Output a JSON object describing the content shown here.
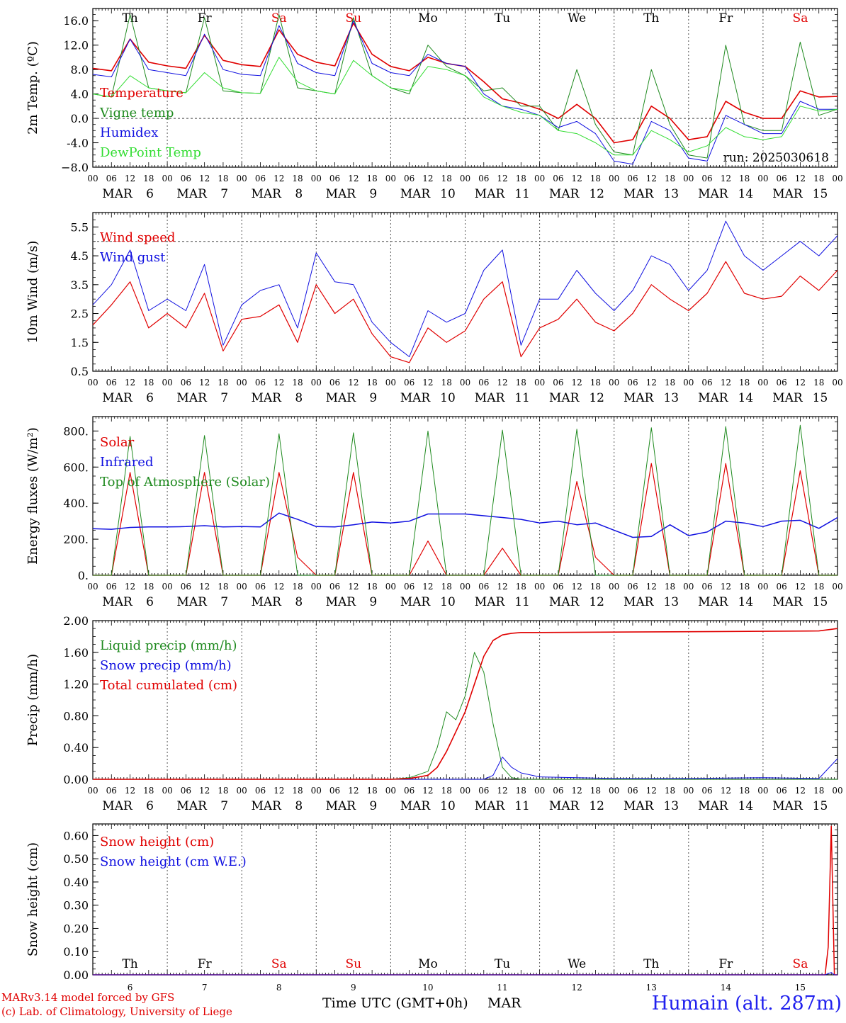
{
  "colors": {
    "red": "#e00000",
    "dark_green": "#1f8a1f",
    "blue": "#1010e0",
    "light_green": "#33dd33",
    "axis": "#000000",
    "weekend": "#e00000",
    "station": "#2020ee"
  },
  "x_axis": {
    "hour_ticks": [
      "00",
      "06",
      "12",
      "18"
    ],
    "end_tick": "00",
    "month": "MAR",
    "dates": [
      "6",
      "7",
      "8",
      "9",
      "10",
      "11",
      "12",
      "13",
      "14",
      "15"
    ],
    "weekdays": [
      {
        "label": "Th",
        "weekend": false
      },
      {
        "label": "Fr",
        "weekend": false
      },
      {
        "label": "Sa",
        "weekend": true
      },
      {
        "label": "Su",
        "weekend": true
      },
      {
        "label": "Mo",
        "weekend": false
      },
      {
        "label": "Tu",
        "weekend": false
      },
      {
        "label": "We",
        "weekend": false
      },
      {
        "label": "Th",
        "weekend": false
      },
      {
        "label": "Fr",
        "weekend": false
      },
      {
        "label": "Sa",
        "weekend": true
      }
    ]
  },
  "footer": {
    "model": "MARv3.14 model forced by GFS",
    "copyright": "(c) Lab. of Climatology, University of Liege",
    "time_label": "Time UTC (GMT+0h)",
    "month": "MAR",
    "station": "Humain (alt. 287m)"
  },
  "chart_data": [
    {
      "type": "line",
      "ylabel": "2m Temp. (ºC)",
      "ylim": [
        -8,
        18
      ],
      "yticks": [
        {
          "v": 16,
          "label": "16.0"
        },
        {
          "v": 12,
          "label": "12.0"
        },
        {
          "v": 8,
          "label": "8.0"
        },
        {
          "v": 4,
          "label": "4.0"
        },
        {
          "v": 0,
          "label": "0.0"
        },
        {
          "v": -4,
          "label": "-4.0"
        },
        {
          "v": -8,
          "label": "−8.0"
        }
      ],
      "ref_line": 0,
      "show_weekdays": true,
      "run_label": "run: 2025030618",
      "x": [
        0,
        6,
        12,
        18,
        24,
        30,
        36,
        42,
        48,
        54,
        60,
        66,
        72,
        78,
        84,
        90,
        96,
        102,
        108,
        114,
        120,
        126,
        132,
        138,
        144,
        150,
        156,
        162,
        168,
        174,
        180,
        186,
        192,
        198,
        204,
        210,
        216,
        222,
        228,
        234,
        240
      ],
      "series": [
        {
          "name": "Temperature",
          "color_key": "red",
          "width": 1.6,
          "values": [
            8.2,
            7.8,
            13.0,
            9.2,
            8.6,
            8.2,
            13.6,
            9.5,
            8.8,
            8.5,
            14.5,
            10.5,
            9.2,
            8.6,
            15.6,
            10.5,
            8.5,
            7.8,
            10.0,
            9.0,
            8.5,
            6.0,
            3.2,
            2.5,
            1.5,
            0.0,
            2.3,
            0.0,
            -4.0,
            -3.5,
            2.0,
            0.0,
            -3.5,
            -3.0,
            2.8,
            1.0,
            0.0,
            0.0,
            4.5,
            3.5,
            3.6
          ]
        },
        {
          "name": "Vigne temp",
          "color_key": "dark_green",
          "width": 1.0,
          "values": [
            4.0,
            3.5,
            17.0,
            5.0,
            4.5,
            4.2,
            16.5,
            4.5,
            4.2,
            4.1,
            17.0,
            5.0,
            4.5,
            4.0,
            16.5,
            7.0,
            5.0,
            4.0,
            12.0,
            8.5,
            7.0,
            4.5,
            5.0,
            2.0,
            2.0,
            -2.0,
            8.0,
            -1.0,
            -5.5,
            -6.0,
            8.0,
            -1.0,
            -6.0,
            -6.5,
            12.0,
            -1.0,
            -2.0,
            -2.0,
            12.5,
            0.5,
            1.5
          ]
        },
        {
          "name": "Humidex",
          "color_key": "blue",
          "width": 1.0,
          "values": [
            7.2,
            6.8,
            13.0,
            8.0,
            7.5,
            7.0,
            13.8,
            8.0,
            7.2,
            7.0,
            15.2,
            9.0,
            7.5,
            7.0,
            16.0,
            9.0,
            7.5,
            7.0,
            10.5,
            9.0,
            8.5,
            4.0,
            2.0,
            1.5,
            0.5,
            -1.5,
            -0.5,
            -2.5,
            -7.0,
            -7.5,
            -0.5,
            -2.0,
            -6.5,
            -7.0,
            0.5,
            -1.0,
            -2.5,
            -2.5,
            2.8,
            1.5,
            1.5
          ]
        },
        {
          "name": "DewPoint Temp",
          "color_key": "light_green",
          "width": 1.0,
          "values": [
            4.0,
            3.5,
            7.0,
            5.0,
            4.5,
            4.2,
            7.5,
            5.0,
            4.2,
            4.1,
            10.0,
            6.0,
            4.5,
            4.0,
            9.5,
            7.0,
            5.0,
            4.5,
            8.5,
            8.0,
            7.0,
            3.5,
            2.0,
            1.0,
            0.5,
            -2.0,
            -2.5,
            -4.0,
            -6.0,
            -6.0,
            -2.0,
            -3.5,
            -5.5,
            -4.5,
            -1.5,
            -3.0,
            -3.5,
            -3.0,
            2.0,
            1.2,
            1.5
          ]
        }
      ]
    },
    {
      "type": "line",
      "ylabel": "10m Wind (m/s)",
      "ylim": [
        0.5,
        6.0
      ],
      "yticks": [
        {
          "v": 5.5,
          "label": "5.5"
        },
        {
          "v": 4.5,
          "label": "4.5"
        },
        {
          "v": 3.5,
          "label": "3.5"
        },
        {
          "v": 2.5,
          "label": "2.5"
        },
        {
          "v": 1.5,
          "label": "1.5"
        },
        {
          "v": 0.5,
          "label": "0.5"
        }
      ],
      "ref_line": 5.0,
      "show_weekdays": false,
      "x": [
        0,
        6,
        12,
        18,
        24,
        30,
        36,
        42,
        48,
        54,
        60,
        66,
        72,
        78,
        84,
        90,
        96,
        102,
        108,
        114,
        120,
        126,
        132,
        138,
        144,
        150,
        156,
        162,
        168,
        174,
        180,
        186,
        192,
        198,
        204,
        210,
        216,
        222,
        228,
        234,
        240
      ],
      "series": [
        {
          "name": "Wind speed",
          "color_key": "red",
          "width": 1.2,
          "values": [
            2.1,
            2.8,
            3.6,
            2.0,
            2.5,
            2.0,
            3.2,
            1.2,
            2.3,
            2.4,
            2.8,
            1.5,
            3.5,
            2.5,
            3.0,
            1.8,
            1.0,
            0.8,
            2.0,
            1.5,
            1.9,
            3.0,
            3.6,
            1.0,
            2.0,
            2.3,
            3.0,
            2.2,
            1.9,
            2.5,
            3.5,
            3.0,
            2.6,
            3.2,
            4.3,
            3.2,
            3.0,
            3.1,
            3.8,
            3.3,
            4.0
          ]
        },
        {
          "name": "Wind gust",
          "color_key": "blue",
          "width": 1.0,
          "values": [
            2.8,
            3.5,
            4.7,
            2.6,
            3.0,
            2.6,
            4.2,
            1.4,
            2.8,
            3.3,
            3.5,
            2.0,
            4.6,
            3.6,
            3.5,
            2.2,
            1.5,
            1.0,
            2.6,
            2.2,
            2.5,
            4.0,
            4.7,
            1.4,
            3.0,
            3.0,
            4.0,
            3.2,
            2.6,
            3.3,
            4.5,
            4.2,
            3.3,
            4.0,
            5.7,
            4.5,
            4.0,
            4.5,
            5.0,
            4.5,
            5.2
          ]
        }
      ]
    },
    {
      "type": "line",
      "ylabel": "Energy fluxes (W/m²)",
      "ylim": [
        0,
        880
      ],
      "yticks": [
        {
          "v": 800,
          "label": "800."
        },
        {
          "v": 600,
          "label": "600."
        },
        {
          "v": 400,
          "label": "400."
        },
        {
          "v": 200,
          "label": "200."
        },
        {
          "v": 0,
          "label": "0."
        }
      ],
      "ref_line": null,
      "show_weekdays": false,
      "x": [
        0,
        6,
        12,
        18,
        24,
        30,
        36,
        42,
        48,
        54,
        60,
        66,
        72,
        78,
        84,
        90,
        96,
        102,
        108,
        114,
        120,
        126,
        132,
        138,
        144,
        150,
        156,
        162,
        168,
        174,
        180,
        186,
        192,
        198,
        204,
        210,
        216,
        222,
        228,
        234,
        240
      ],
      "series": [
        {
          "name": "Solar",
          "color_key": "red",
          "width": 1.2,
          "values": [
            0,
            0,
            570,
            0,
            0,
            0,
            570,
            0,
            0,
            0,
            570,
            100,
            0,
            0,
            570,
            0,
            0,
            0,
            190,
            0,
            0,
            0,
            150,
            0,
            0,
            0,
            520,
            100,
            0,
            0,
            620,
            0,
            0,
            0,
            620,
            0,
            0,
            0,
            580,
            0,
            0
          ]
        },
        {
          "name": "Infrared",
          "color_key": "blue",
          "width": 1.5,
          "values": [
            258,
            255,
            265,
            268,
            268,
            270,
            275,
            268,
            270,
            268,
            345,
            310,
            270,
            268,
            280,
            295,
            290,
            300,
            340,
            340,
            340,
            330,
            320,
            310,
            290,
            300,
            280,
            290,
            250,
            210,
            215,
            280,
            220,
            240,
            300,
            290,
            270,
            300,
            305,
            260,
            320
          ]
        },
        {
          "name": "Top of Atmosphere (Solar)",
          "color_key": "dark_green",
          "width": 1.0,
          "values": [
            0,
            0,
            770,
            0,
            0,
            0,
            775,
            0,
            0,
            0,
            785,
            0,
            0,
            0,
            790,
            0,
            0,
            0,
            800,
            0,
            0,
            0,
            805,
            0,
            0,
            0,
            810,
            0,
            0,
            0,
            818,
            0,
            0,
            0,
            825,
            0,
            0,
            0,
            832,
            0,
            0
          ]
        }
      ]
    },
    {
      "type": "line",
      "ylabel": "Precip (mm/h)",
      "ylim": [
        0,
        2.0
      ],
      "yticks": [
        {
          "v": 2.0,
          "label": "2.00"
        },
        {
          "v": 1.6,
          "label": "1.60"
        },
        {
          "v": 1.2,
          "label": "1.20"
        },
        {
          "v": 0.8,
          "label": "0.80"
        },
        {
          "v": 0.4,
          "label": "0.40"
        },
        {
          "v": 0.0,
          "label": "0.00"
        }
      ],
      "ref_line": null,
      "show_weekdays": false,
      "x": [
        0,
        24,
        48,
        72,
        96,
        102,
        108,
        111,
        114,
        117,
        120,
        123,
        126,
        129,
        132,
        135,
        138,
        144,
        168,
        192,
        216,
        234,
        240
      ],
      "series": [
        {
          "name": "Liquid precip (mm/h)",
          "color_key": "dark_green",
          "width": 1.0,
          "values": [
            0,
            0,
            0,
            0,
            0,
            0.02,
            0.1,
            0.4,
            0.85,
            0.75,
            1.05,
            1.6,
            1.35,
            0.7,
            0.15,
            0.02,
            0,
            0,
            0,
            0,
            0,
            0,
            0
          ]
        },
        {
          "name": "Snow precip (mm/h)",
          "color_key": "blue",
          "width": 1.0,
          "values": [
            0,
            0,
            0,
            0,
            0,
            0,
            0,
            0,
            0,
            0,
            0,
            0,
            0,
            0.05,
            0.28,
            0.15,
            0.08,
            0.03,
            0.01,
            0.01,
            0.02,
            0.01,
            0.26
          ]
        },
        {
          "name": "Total cumulated (cm)",
          "color_key": "red",
          "width": 1.6,
          "values": [
            0,
            0,
            0,
            0,
            0,
            0.01,
            0.05,
            0.15,
            0.35,
            0.6,
            0.85,
            1.2,
            1.55,
            1.75,
            1.82,
            1.84,
            1.85,
            1.85,
            1.855,
            1.86,
            1.865,
            1.87,
            1.9
          ]
        }
      ]
    },
    {
      "type": "line",
      "ylabel": "Snow height (cm)",
      "ylim": [
        0,
        0.65
      ],
      "yticks": [
        {
          "v": 0.6,
          "label": "0.60"
        },
        {
          "v": 0.5,
          "label": "0.50"
        },
        {
          "v": 0.4,
          "label": "0.40"
        },
        {
          "v": 0.3,
          "label": "0.30"
        },
        {
          "v": 0.2,
          "label": "0.20"
        },
        {
          "v": 0.1,
          "label": "0.10"
        },
        {
          "v": 0.0,
          "label": "0.00"
        }
      ],
      "ref_line": null,
      "show_weekdays": false,
      "bottom_panel": true,
      "x": [
        0,
        236,
        237,
        238,
        239,
        240
      ],
      "series": [
        {
          "name": "Snow height (cm)",
          "color_key": "red",
          "width": 1.5,
          "values": [
            0,
            0,
            0.12,
            0.64,
            0.0,
            0
          ]
        },
        {
          "name": "Snow height (cm W.E.)",
          "color_key": "blue",
          "width": 1.0,
          "values": [
            0,
            0,
            0.005,
            0.01,
            0,
            0
          ]
        }
      ]
    }
  ]
}
